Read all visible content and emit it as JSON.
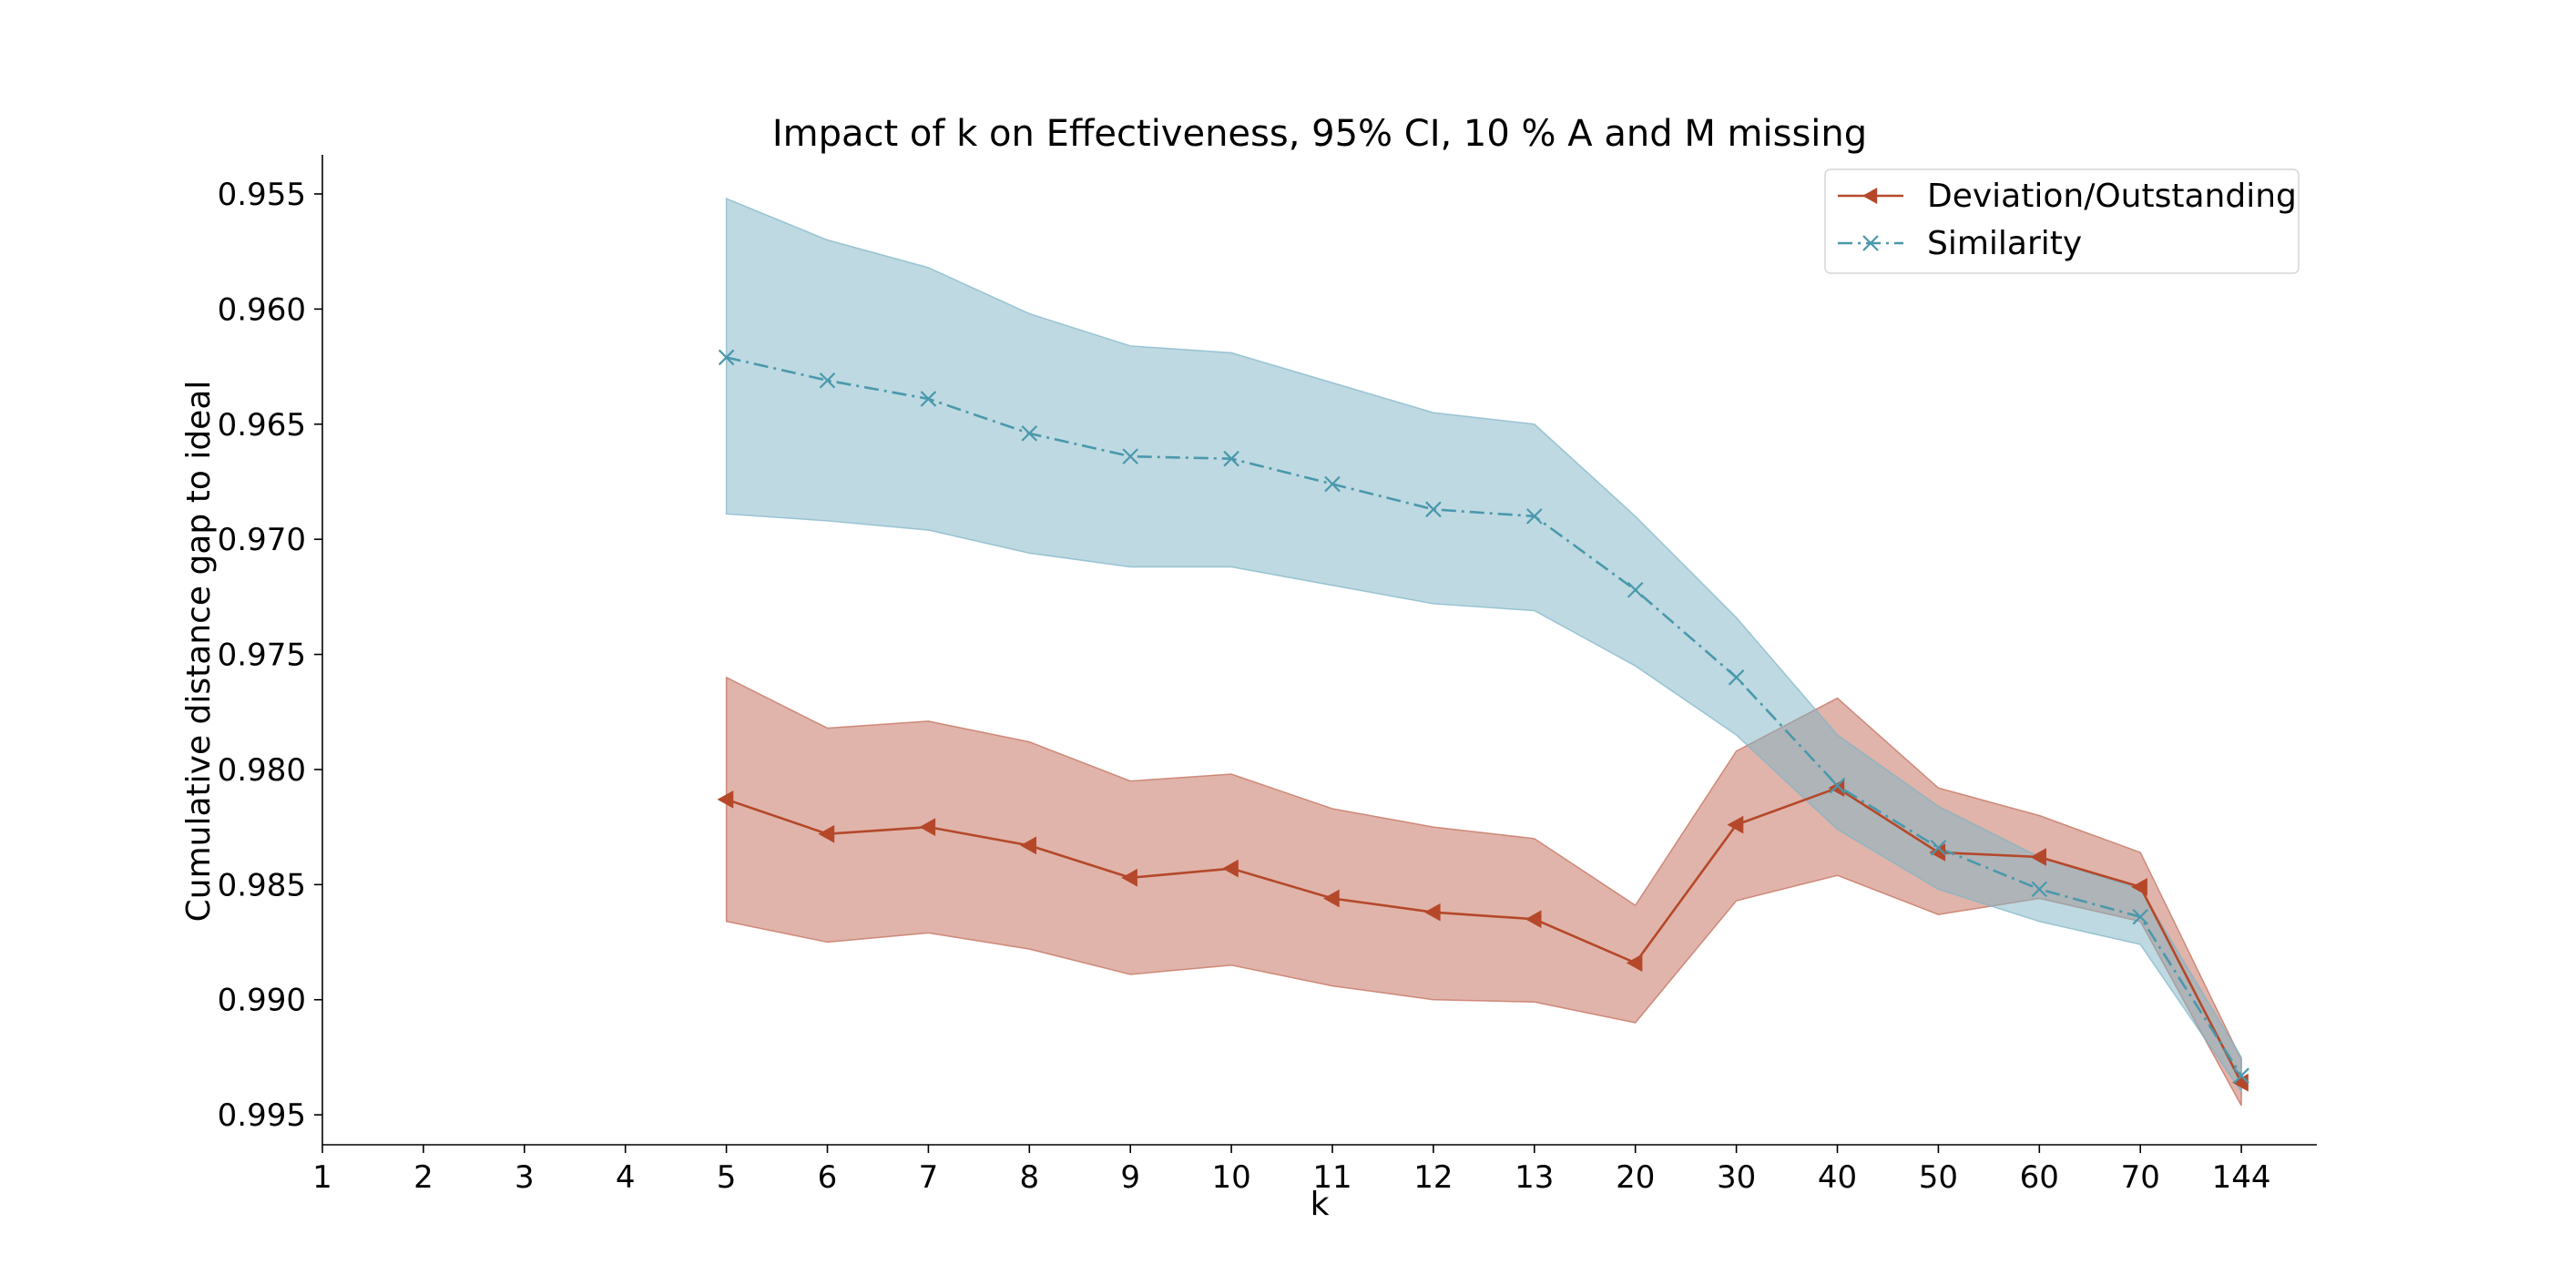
{
  "chart_data": {
    "type": "line",
    "title": "Impact of k on Effectiveness, 95% CI, 10 % A and M missing",
    "xlabel": "k",
    "ylabel": "Cumulative distance gap to ideal",
    "x_categories": [
      "1",
      "2",
      "3",
      "4",
      "5",
      "6",
      "7",
      "8",
      "9",
      "10",
      "11",
      "12",
      "13",
      "20",
      "30",
      "40",
      "50",
      "60",
      "70",
      "144"
    ],
    "ylim": [
      0.9963,
      0.9533
    ],
    "y_inverted": true,
    "y_ticks": [
      0.955,
      0.96,
      0.965,
      0.97,
      0.975,
      0.98,
      0.985,
      0.99,
      0.995
    ],
    "y_tick_labels": [
      "0.955",
      "0.960",
      "0.965",
      "0.970",
      "0.975",
      "0.980",
      "0.985",
      "0.990",
      "0.995"
    ],
    "legend_position": "top-right",
    "series": [
      {
        "name": "Deviation/Outstanding",
        "color": "#b5482a",
        "fill_color": "#c26a55",
        "marker": "triangle-left",
        "line_style": "solid",
        "x": [
          "5",
          "6",
          "7",
          "8",
          "9",
          "10",
          "11",
          "12",
          "13",
          "20",
          "30",
          "40",
          "50",
          "60",
          "70",
          "144"
        ],
        "values": [
          0.9813,
          0.9828,
          0.9825,
          0.9833,
          0.9847,
          0.9843,
          0.9856,
          0.9862,
          0.9865,
          0.9884,
          0.9824,
          0.9808,
          0.9836,
          0.9838,
          0.9851,
          0.9936
        ],
        "ci_lower": [
          0.976,
          0.9782,
          0.9779,
          0.9788,
          0.9805,
          0.9802,
          0.9817,
          0.9825,
          0.983,
          0.9859,
          0.9792,
          0.9769,
          0.9808,
          0.982,
          0.9836,
          0.9926
        ],
        "ci_upper": [
          0.9866,
          0.9875,
          0.9871,
          0.9878,
          0.9889,
          0.9885,
          0.9894,
          0.99,
          0.9901,
          0.991,
          0.9857,
          0.9846,
          0.9863,
          0.9856,
          0.9866,
          0.9946
        ]
      },
      {
        "name": "Similarity",
        "color": "#4a98ac",
        "fill_color": "#7eb3c6",
        "marker": "x",
        "line_style": "dashdot",
        "x": [
          "5",
          "6",
          "7",
          "8",
          "9",
          "10",
          "11",
          "12",
          "13",
          "20",
          "30",
          "40",
          "50",
          "60",
          "70",
          "144"
        ],
        "values": [
          0.9621,
          0.9631,
          0.9639,
          0.9654,
          0.9664,
          0.9665,
          0.9676,
          0.9687,
          0.969,
          0.9722,
          0.976,
          0.9807,
          0.9834,
          0.9852,
          0.9864,
          0.9933
        ],
        "ci_lower": [
          0.9552,
          0.957,
          0.9582,
          0.9602,
          0.9616,
          0.9619,
          0.9632,
          0.9645,
          0.965,
          0.969,
          0.9734,
          0.9785,
          0.9816,
          0.9838,
          0.9852,
          0.9925
        ],
        "ci_upper": [
          0.9689,
          0.9692,
          0.9696,
          0.9706,
          0.9712,
          0.9712,
          0.972,
          0.9728,
          0.9731,
          0.9755,
          0.9785,
          0.9826,
          0.9852,
          0.9866,
          0.9876,
          0.994
        ]
      }
    ]
  }
}
